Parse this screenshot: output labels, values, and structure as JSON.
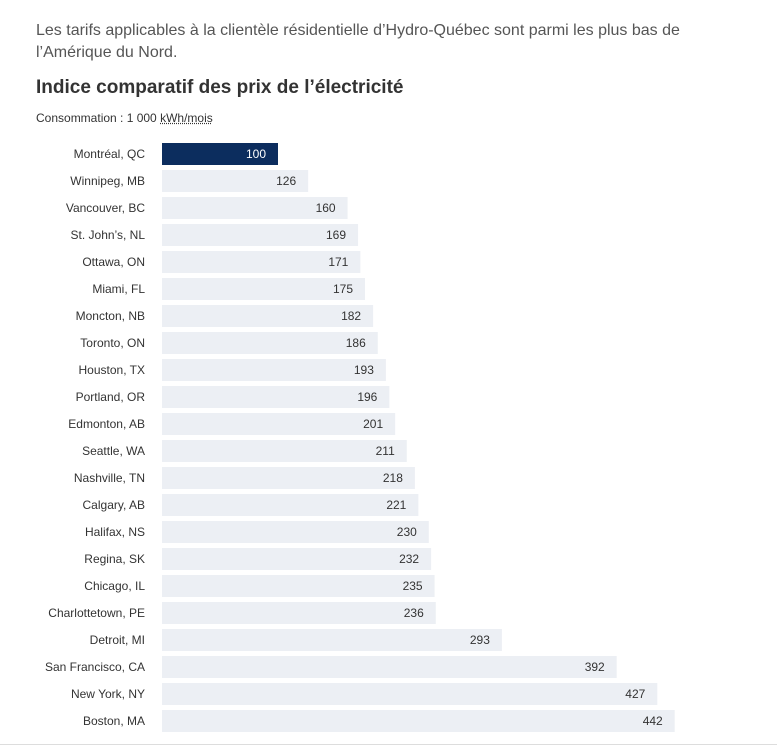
{
  "intro_text": "Les tarifs applicables à la clientèle résidentielle d’Hydro-Québec sont parmi les plus bas de l’Amérique du Nord.",
  "chart_data": {
    "type": "bar",
    "orientation": "horizontal",
    "title": "Indice comparatif des prix de l’électricité",
    "subtitle_prefix": "Consommation : 1 000 ",
    "subtitle_unit": "kWh/mois",
    "categories": [
      "Montréal, QC",
      "Winnipeg, MB",
      "Vancouver, BC",
      "St. John’s, NL",
      "Ottawa, ON",
      "Miami, FL",
      "Moncton, NB",
      "Toronto, ON",
      "Houston, TX",
      "Portland, OR",
      "Edmonton, AB",
      "Seattle, WA",
      "Nashville, TN",
      "Calgary, AB",
      "Halifax, NS",
      "Regina, SK",
      "Chicago, IL",
      "Charlottetown, PE",
      "Detroit, MI",
      "San Francisco, CA",
      "New York, NY",
      "Boston, MA"
    ],
    "values": [
      100,
      126,
      160,
      169,
      171,
      175,
      182,
      186,
      193,
      196,
      201,
      211,
      218,
      221,
      230,
      232,
      235,
      236,
      293,
      392,
      427,
      442
    ],
    "highlight_index": 0,
    "colors": {
      "highlight": "#0c2d5e",
      "bar": "#eceff4",
      "label_on_highlight": "#ffffff",
      "label": "#333333"
    }
  }
}
